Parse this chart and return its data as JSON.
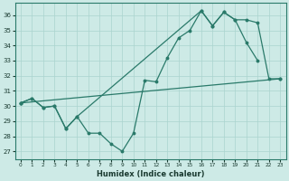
{
  "xlabel": "Humidex (Indice chaleur)",
  "xlim": [
    -0.5,
    23.5
  ],
  "ylim": [
    26.5,
    36.8
  ],
  "yticks": [
    27,
    28,
    29,
    30,
    31,
    32,
    33,
    34,
    35,
    36
  ],
  "xticks": [
    0,
    1,
    2,
    3,
    4,
    5,
    6,
    7,
    8,
    9,
    10,
    11,
    12,
    13,
    14,
    15,
    16,
    17,
    18,
    19,
    20,
    21,
    22,
    23
  ],
  "xtick_labels": [
    "0",
    "1",
    "2",
    "3",
    "4",
    "5",
    "6",
    "7",
    "8",
    "9",
    "10",
    "11",
    "12",
    "13",
    "14",
    "15",
    "16",
    "17",
    "18",
    "19",
    "20",
    "21",
    "22",
    "23"
  ],
  "line_color": "#2a7a6a",
  "bg_color": "#cdeae6",
  "grid_color": "#aad4ce",
  "line1_x": [
    0,
    1,
    2,
    3,
    4,
    5,
    6,
    7,
    8,
    9,
    10,
    11,
    12,
    13,
    14,
    15,
    16,
    17,
    18,
    19,
    20,
    21
  ],
  "line1_y": [
    30.2,
    30.5,
    29.9,
    30.0,
    28.5,
    29.3,
    28.2,
    28.2,
    27.5,
    27.0,
    28.2,
    31.7,
    31.6,
    33.2,
    34.5,
    35.0,
    36.3,
    35.3,
    36.2,
    35.7,
    34.2,
    33.0
  ],
  "line2_x": [
    0,
    1,
    2,
    3,
    4,
    5,
    16,
    17,
    18,
    19,
    20,
    21,
    22,
    23
  ],
  "line2_y": [
    30.2,
    30.5,
    29.9,
    30.0,
    28.5,
    29.3,
    36.3,
    35.3,
    36.2,
    35.7,
    35.7,
    35.5,
    31.8,
    31.8
  ],
  "line3_x": [
    0,
    23
  ],
  "line3_y": [
    30.2,
    31.8
  ]
}
